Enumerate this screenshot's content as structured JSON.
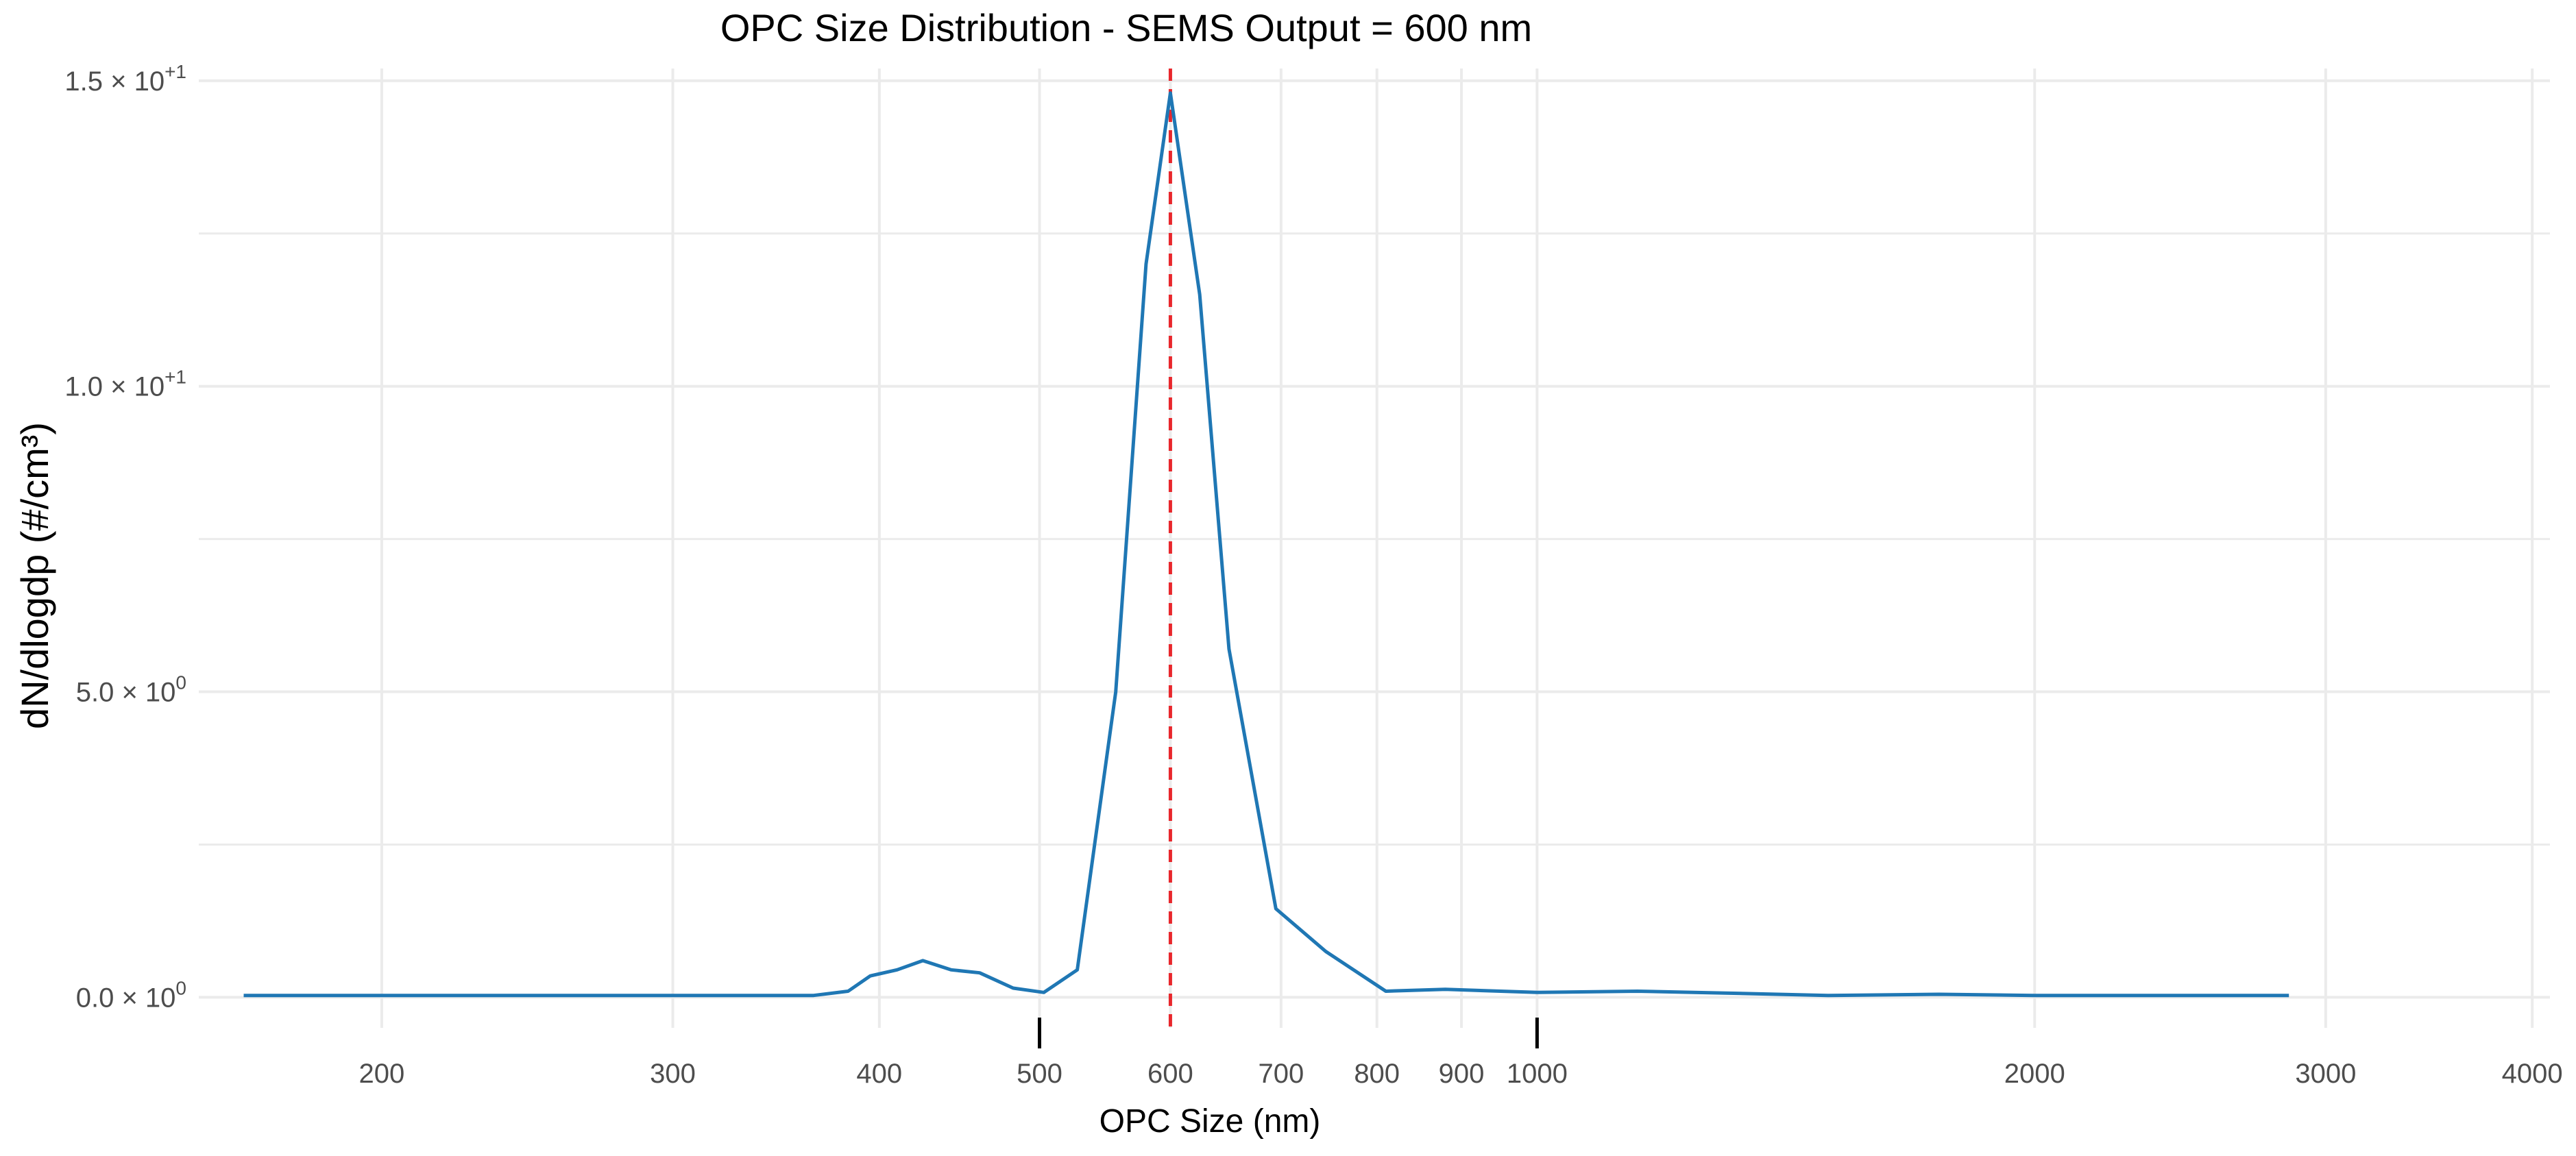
{
  "chart_data": {
    "type": "line",
    "title": "OPC Size Distribution - SEMS Output = 600 nm",
    "xlabel": "OPC Size (nm)",
    "ylabel": "dN/dlogdp (#/cm³)",
    "x_scale": "log",
    "xlim": [
      155,
      4100
    ],
    "ylim": [
      -0.5,
      15.2
    ],
    "grid": true,
    "legend": "none",
    "colors": {
      "line": "#1f77b4",
      "reference_line": "#e8272c",
      "grid": "#ebebeb",
      "title_text": "#000000",
      "tick_text": "#4d4d4d"
    },
    "x_ticks": [
      {
        "value": 200,
        "label": "200"
      },
      {
        "value": 300,
        "label": "300"
      },
      {
        "value": 400,
        "label": "400"
      },
      {
        "value": 500,
        "label": "500"
      },
      {
        "value": 600,
        "label": "600"
      },
      {
        "value": 700,
        "label": "700"
      },
      {
        "value": 800,
        "label": "800"
      },
      {
        "value": 900,
        "label": "900"
      },
      {
        "value": 1000,
        "label": "1000"
      },
      {
        "value": 2000,
        "label": "2000"
      },
      {
        "value": 3000,
        "label": "3000"
      },
      {
        "value": 4000,
        "label": "4000"
      }
    ],
    "x_major_marks": [
      500,
      1000
    ],
    "y_ticks": [
      {
        "value": 0,
        "mantissa": "0.0",
        "exponent": "0"
      },
      {
        "value": 5,
        "mantissa": "5.0",
        "exponent": "0"
      },
      {
        "value": 10,
        "mantissa": "1.0",
        "exponent": "+1"
      },
      {
        "value": 15,
        "mantissa": "1.5",
        "exponent": "+1"
      }
    ],
    "y_minor_grid": [
      2.5,
      7.5,
      12.5
    ],
    "reference_line": {
      "x": 600,
      "style": "dashed"
    },
    "series": [
      {
        "x": [
          165,
          200,
          250,
          300,
          350,
          365,
          383,
          395,
          410,
          425,
          442,
          460,
          482,
          503,
          527,
          556,
          580,
          600,
          625,
          651,
          695,
          745,
          810,
          880,
          1000,
          1150,
          1300,
          1500,
          1750,
          2000,
          2400,
          2850
        ],
        "y": [
          0.03,
          0.03,
          0.03,
          0.03,
          0.03,
          0.03,
          0.1,
          0.35,
          0.45,
          0.6,
          0.45,
          0.4,
          0.15,
          0.08,
          0.45,
          5.0,
          12.0,
          14.8,
          11.5,
          5.7,
          1.45,
          0.75,
          0.1,
          0.13,
          0.08,
          0.1,
          0.07,
          0.03,
          0.05,
          0.03,
          0.03,
          0.03
        ]
      }
    ]
  }
}
